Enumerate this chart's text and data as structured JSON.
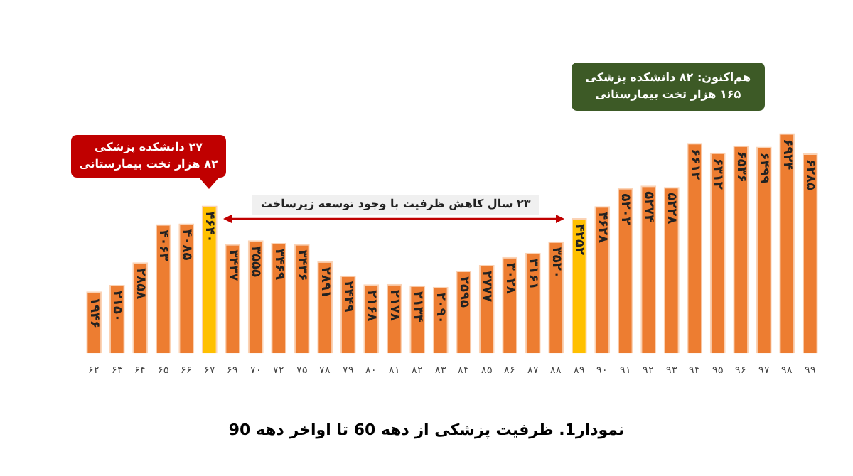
{
  "chart_data": {
    "type": "bar",
    "title": "نمودار1. ظرفیت پزشکی از دهه 60 تا اواخر دهه 90",
    "categories": [
      "۶۲",
      "۶۳",
      "۶۴",
      "۶۵",
      "۶۶",
      "۶۷",
      "۶۹",
      "۷۰",
      "۷۲",
      "۷۵",
      "۷۸",
      "۷۹",
      "۸۰",
      "۸۱",
      "۸۲",
      "۸۳",
      "۸۴",
      "۸۵",
      "۸۶",
      "۸۷",
      "۸۸",
      "۸۹",
      "۹۰",
      "۹۱",
      "۹۲",
      "۹۳",
      "۹۴",
      "۹۵",
      "۹۶",
      "۹۷",
      "۹۸",
      "۹۹"
    ],
    "values": [
      1946,
      2150,
      2858,
      4063,
      4085,
      4640,
      3437,
      3555,
      3469,
      3436,
      2891,
      2449,
      2168,
      2178,
      2134,
      2090,
      2595,
      2777,
      3028,
      3161,
      3520,
      4252,
      4628,
      5202,
      5274,
      5228,
      6612,
      6312,
      6536,
      6499,
      6924,
      6285
    ],
    "value_labels": [
      "۱۹۴۶",
      "۲۱۵۰",
      "۲۸۵۸",
      "۴۰۶۳",
      "۴۰۸۵",
      "۴۶۴۰",
      "۳۴۳۷",
      "۳۵۵۵",
      "۳۴۶۹",
      "۳۴۳۶",
      "۲۸۹۱",
      "۲۴۴۹",
      "۲۱۶۸",
      "۲۱۷۸",
      "۲۱۳۴",
      "۲۰۹۰",
      "۲۵۹۵",
      "۲۷۷۷",
      "۳۰۲۸",
      "۳۱۶۱",
      "۳۵۲۰",
      "۴۲۵۲",
      "۴۶۲۸",
      "۵۲۰۲",
      "۵۲۷۴",
      "۵۲۲۸",
      "۶۶۱۲",
      "۶۳۱۲",
      "۶۵۳۶",
      "۶۴۹۹",
      "۶۹۲۴",
      "۶۲۸۵"
    ],
    "colors": [
      "#ed7d31",
      "#ed7d31",
      "#ed7d31",
      "#ed7d31",
      "#ed7d31",
      "#ffc000",
      "#ed7d31",
      "#ed7d31",
      "#ed7d31",
      "#ed7d31",
      "#ed7d31",
      "#ed7d31",
      "#ed7d31",
      "#ed7d31",
      "#ed7d31",
      "#ed7d31",
      "#ed7d31",
      "#ed7d31",
      "#ed7d31",
      "#ed7d31",
      "#ed7d31",
      "#ffc000",
      "#ed7d31",
      "#ed7d31",
      "#ed7d31",
      "#ed7d31",
      "#ed7d31",
      "#ed7d31",
      "#ed7d31",
      "#ed7d31",
      "#ed7d31",
      "#ed7d31"
    ],
    "ylim": [
      0,
      7000
    ],
    "tick_labels": "x",
    "grid": false,
    "legend": false,
    "annotations": [
      "۲۷ دانشکده پزشکی\n۸۲ هزار تخت بیمارستانی",
      "هم‌اکنون: ۸۲ دانشکده پزشکی\n۱۶۵ هزار تخت بیمارستانی",
      "۲۳ سال کاهش ظرفیت با وجود توسعه زیرساخت"
    ]
  }
}
